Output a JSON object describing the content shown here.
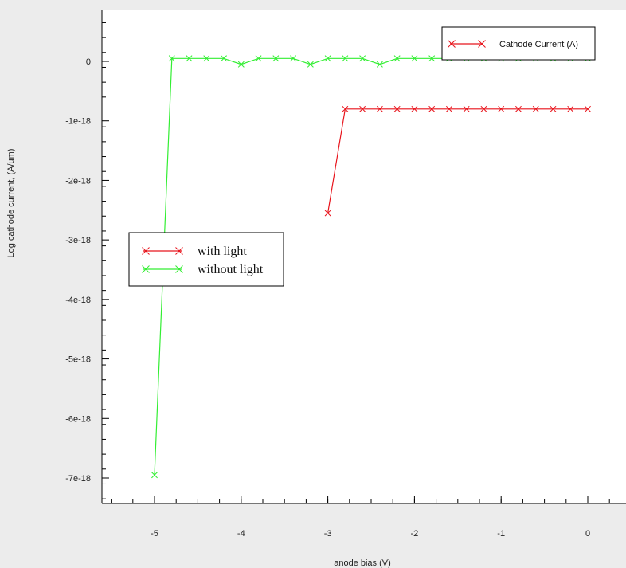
{
  "chart_data": {
    "type": "line",
    "title": "",
    "xlabel": "anode bias (V)",
    "ylabel": "Log cathode current, (A/um)",
    "xlim": [
      -5.55,
      0.5
    ],
    "ylim": [
      -7.35e-18,
      9e-19
    ],
    "x_ticks": [
      -5,
      -4,
      -3,
      -2,
      -1,
      0
    ],
    "x_tick_labels": [
      "-5",
      "-4",
      "-3",
      "-2",
      "-1",
      "0"
    ],
    "y_ticks": [
      0,
      -1e-18,
      -2e-18,
      -3e-18,
      -4e-18,
      -5e-18,
      -6e-18,
      -7e-18
    ],
    "y_tick_labels": [
      "0",
      "-1e-18",
      "-2e-18",
      "-3e-18",
      "-4e-18",
      "-5e-18",
      "-6e-18",
      "-7e-18"
    ],
    "grid": false,
    "series": [
      {
        "name": "with light",
        "color": "#e8141c",
        "marker": "x",
        "x": [
          -3.0,
          -2.8,
          -2.6,
          -2.4,
          -2.2,
          -2.0,
          -1.8,
          -1.6,
          -1.4,
          -1.2,
          -1.0,
          -0.8,
          -0.6,
          -0.4,
          -0.2,
          0.0
        ],
        "y": [
          -2.55e-18,
          -8e-19,
          -8e-19,
          -8e-19,
          -8e-19,
          -8e-19,
          -8e-19,
          -8e-19,
          -8e-19,
          -8e-19,
          -8e-19,
          -8e-19,
          -8e-19,
          -8e-19,
          -8e-19,
          -8e-19
        ]
      },
      {
        "name": "without light",
        "color": "#33ee33",
        "marker": "x",
        "x": [
          -5.0,
          -4.8,
          -4.6,
          -4.4,
          -4.2,
          -4.0,
          -3.8,
          -3.6,
          -3.4,
          -3.2,
          -3.0,
          -2.8,
          -2.6,
          -2.4,
          -2.2,
          -2.0,
          -1.8,
          -1.6,
          -1.4,
          -1.2,
          -1.0,
          -0.8,
          -0.6,
          -0.4,
          -0.2,
          0.0
        ],
        "y": [
          -6.95e-18,
          5e-20,
          5e-20,
          5e-20,
          5e-20,
          -5e-20,
          5e-20,
          5e-20,
          5e-20,
          -5e-20,
          5e-20,
          5e-20,
          5e-20,
          -5e-20,
          5e-20,
          5e-20,
          5e-20,
          5e-20,
          5e-20,
          5e-20,
          5e-20,
          5e-20,
          5e-20,
          5e-20,
          5e-20,
          5e-20
        ]
      }
    ],
    "legends": [
      {
        "placement": "top-right",
        "entries": [
          {
            "label": "Cathode Current (A)",
            "color": "#e8141c"
          }
        ]
      },
      {
        "placement": "center-left",
        "entries": [
          {
            "label": "with light",
            "color": "#e8141c"
          },
          {
            "label": "without light",
            "color": "#33ee33"
          }
        ]
      }
    ]
  }
}
